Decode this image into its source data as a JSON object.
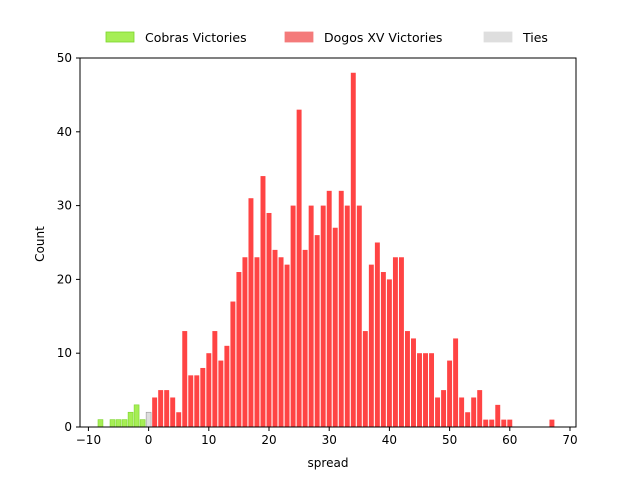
{
  "chart_data": {
    "type": "bar",
    "xlabel": "spread",
    "ylabel": "Count",
    "xlim": [
      -11.4,
      71.0
    ],
    "ylim": [
      0,
      50
    ],
    "xticks": [
      -10,
      0,
      10,
      20,
      30,
      40,
      50,
      60,
      70
    ],
    "yticks": [
      0,
      10,
      20,
      30,
      40,
      50
    ],
    "grid": false,
    "legend": "top-center",
    "colors": {
      "cobras": "#a6ee55",
      "cobras_edge": "#7bd62a",
      "dogos": "#ff4444",
      "dogos_legend": "#f47a7a",
      "ties": "#dedede",
      "ties_edge": "#999999"
    },
    "series": [
      {
        "name": "Cobras Victories",
        "key": "cobras",
        "x": [
          -8,
          -6,
          -5,
          -4,
          -3,
          -2,
          -1
        ],
        "values": [
          1,
          1,
          1,
          1,
          2,
          3,
          1
        ]
      },
      {
        "name": "Dogos XV Victories",
        "key": "dogos",
        "x": [
          1,
          2,
          3,
          4,
          5,
          6,
          7,
          8,
          9,
          10,
          11,
          12,
          13,
          14,
          15,
          16,
          17,
          18,
          19,
          20,
          21,
          22,
          23,
          24,
          25,
          26,
          27,
          28,
          29,
          30,
          31,
          32,
          33,
          34,
          35,
          36,
          37,
          38,
          39,
          40,
          41,
          42,
          43,
          44,
          45,
          46,
          47,
          48,
          49,
          50,
          51,
          52,
          53,
          54,
          55,
          56,
          57,
          58,
          59,
          60,
          67
        ],
        "values": [
          4,
          5,
          5,
          4,
          2,
          13,
          7,
          7,
          8,
          10,
          13,
          9,
          11,
          17,
          21,
          23,
          31,
          23,
          34,
          29,
          24,
          23,
          22,
          30,
          43,
          24,
          30,
          26,
          30,
          32,
          27,
          32,
          30,
          48,
          30,
          13,
          22,
          25,
          21,
          20,
          23,
          23,
          13,
          12,
          10,
          10,
          10,
          4,
          5,
          9,
          12,
          4,
          2,
          4,
          5,
          1,
          1,
          3,
          1,
          1,
          1
        ]
      },
      {
        "name": "Ties",
        "key": "ties",
        "x": [
          0
        ],
        "values": [
          2
        ]
      }
    ]
  }
}
